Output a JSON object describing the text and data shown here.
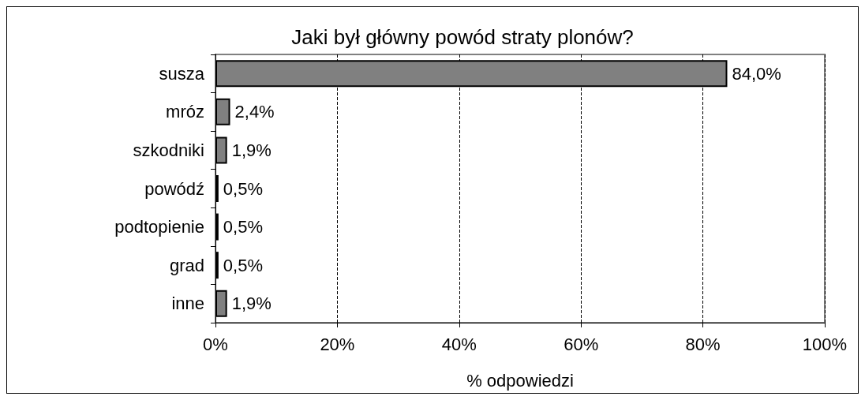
{
  "chart_data": {
    "type": "bar",
    "orientation": "horizontal",
    "title": "Jaki był główny powód straty plonów?",
    "xlabel": "% odpowiedzi",
    "categories": [
      "susza",
      "mróz",
      "szkodniki",
      "powódź",
      "podtopienie",
      "grad",
      "inne"
    ],
    "values": [
      84.0,
      2.4,
      1.9,
      0.5,
      0.5,
      0.5,
      1.9
    ],
    "value_labels": [
      "84,0%",
      "2,4%",
      "1,9%",
      "0,5%",
      "0,5%",
      "0,5%",
      "1,9%"
    ],
    "color": "#808080",
    "xlim": [
      0,
      100
    ],
    "xticks": [
      {
        "value": 0,
        "label": "0%"
      },
      {
        "value": 20,
        "label": "20%"
      },
      {
        "value": 40,
        "label": "40%"
      },
      {
        "value": 60,
        "label": "60%"
      },
      {
        "value": 80,
        "label": "80%"
      },
      {
        "value": 100,
        "label": "100%"
      }
    ],
    "grid": "x"
  }
}
